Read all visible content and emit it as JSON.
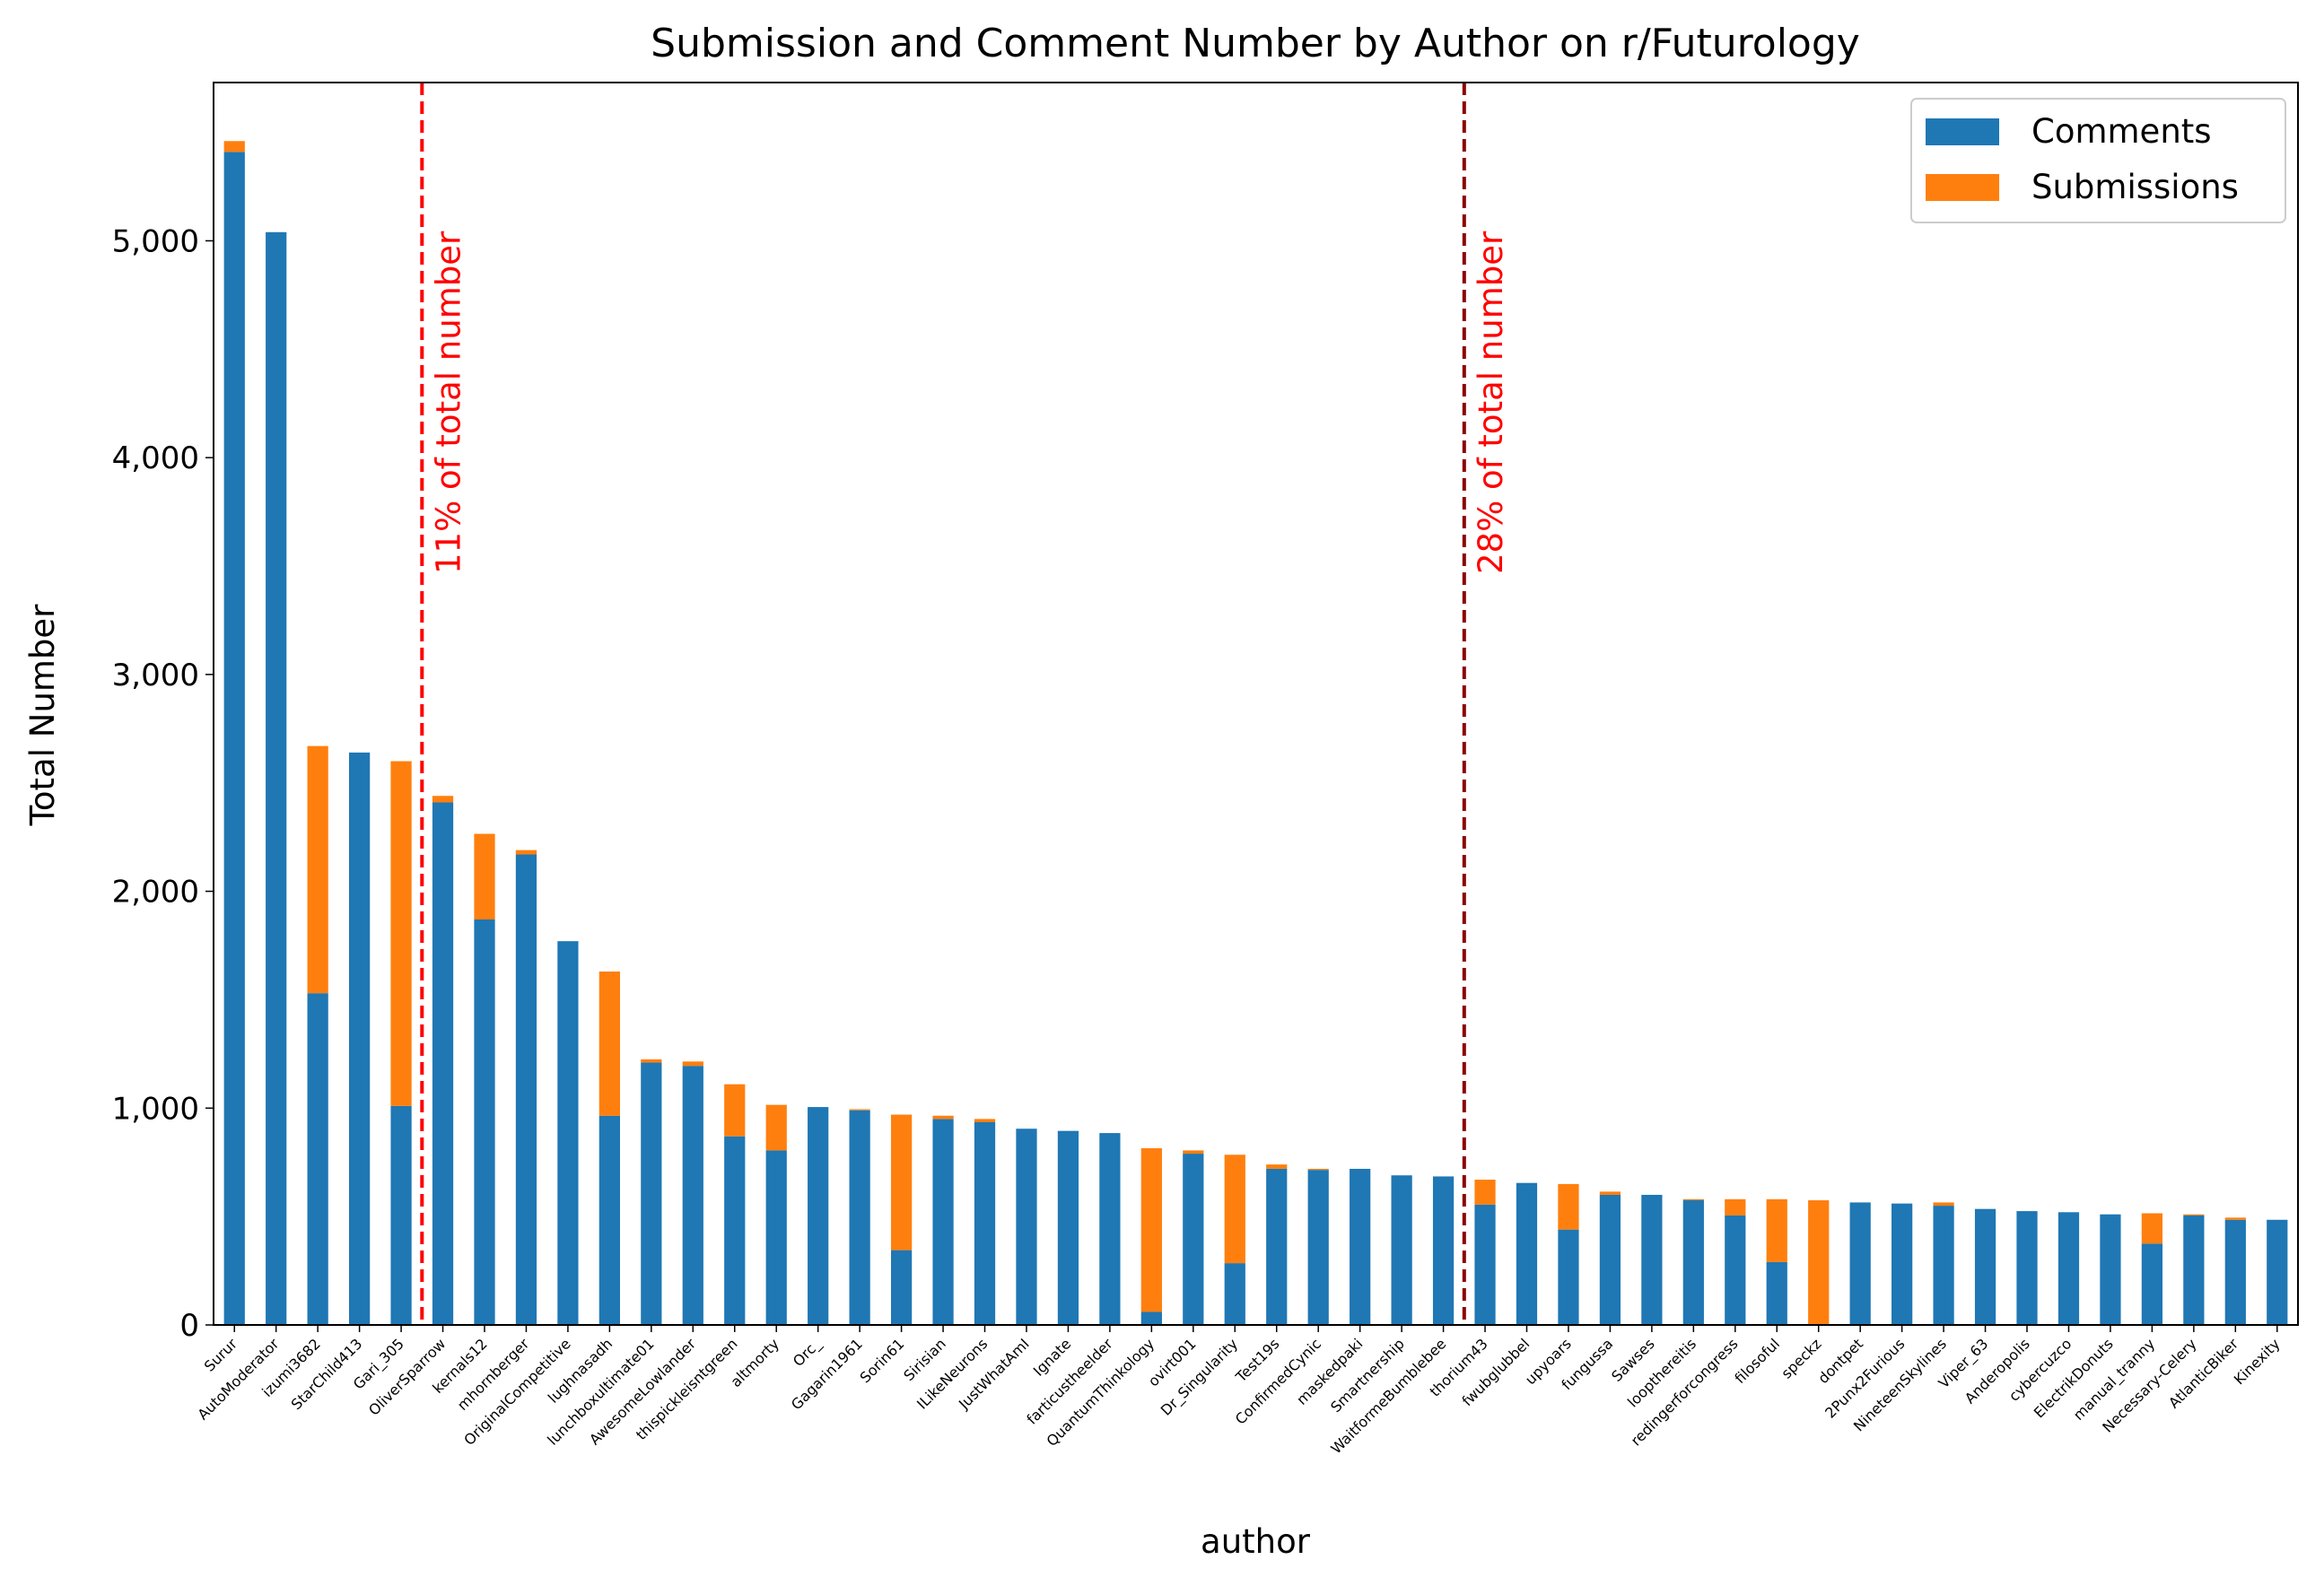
{
  "chart_data": {
    "type": "bar",
    "stacked": true,
    "title": "Submission and Comment Number by Author on r/Futurology",
    "xlabel": "author",
    "ylabel": "Total Number",
    "ylim": [
      0,
      5730
    ],
    "yticks": [
      0,
      1000,
      2000,
      3000,
      4000,
      5000
    ],
    "ytick_labels": [
      "0",
      "1,000",
      "2,000",
      "3,000",
      "4,000",
      "5,000"
    ],
    "grid": false,
    "legend_position": "top-right",
    "categories": [
      "Surur",
      "AutoModerator",
      "izumi3682",
      "StarChild413",
      "Gari_305",
      "OliverSparrow",
      "kernals12",
      "mhornberger",
      "OriginalCompetitive",
      "lughnasadh",
      "lunchboxultimate01",
      "AwesomeLowlander",
      "thispickleisntgreen",
      "altmorty",
      "Orc_",
      "Gagarin1961",
      "Sorin61",
      "Sirisian",
      "ILikeNeurons",
      "JustWhatAmI",
      "Ignate",
      "farticustheelder",
      "QuantumThinkology",
      "ovirt001",
      "Dr_Singularity",
      "Test19s",
      "ConfirmedCynic",
      "maskedpaki",
      "Smartnership",
      "WaitformeBumblebee",
      "thorium43",
      "fwubglubbel",
      "upyoars",
      "fungussa",
      "Sawses",
      "loopthereitis",
      "redingerforcongress",
      "filosoful",
      "speckz",
      "dontpet",
      "2Punx2Furious",
      "NineteenSkylines",
      "Viper_63",
      "Anderopolis",
      "cybercuzco",
      "ElectrikDonuts",
      "manual_tranny",
      "Necessary-Celery",
      "AtlanticBiker",
      "Kinexity"
    ],
    "series": [
      {
        "name": "Comments",
        "color": "#1f77b4",
        "values": [
          5410,
          5040,
          1530,
          2640,
          1010,
          2410,
          1870,
          2170,
          1770,
          965,
          1210,
          1195,
          870,
          805,
          1005,
          990,
          345,
          950,
          935,
          905,
          895,
          885,
          60,
          790,
          285,
          720,
          715,
          720,
          690,
          685,
          555,
          655,
          440,
          600,
          600,
          575,
          505,
          290,
          0,
          565,
          560,
          550,
          535,
          525,
          520,
          510,
          375,
          505,
          485,
          485
        ]
      },
      {
        "name": "Submissions",
        "color": "#ff7f0e",
        "values": [
          50,
          0,
          1140,
          0,
          1590,
          30,
          395,
          20,
          0,
          665,
          15,
          20,
          240,
          210,
          0,
          5,
          625,
          15,
          15,
          0,
          0,
          0,
          755,
          15,
          500,
          20,
          5,
          0,
          0,
          0,
          115,
          0,
          210,
          15,
          0,
          5,
          75,
          290,
          575,
          0,
          0,
          15,
          0,
          0,
          0,
          0,
          140,
          5,
          10,
          0
        ]
      }
    ],
    "annotations": [
      {
        "text": "11% of total number",
        "after_category_index": 4,
        "color": "#ff0000"
      },
      {
        "text": "28% of total number",
        "after_category_index": 29,
        "color": "#8b0000"
      }
    ]
  }
}
